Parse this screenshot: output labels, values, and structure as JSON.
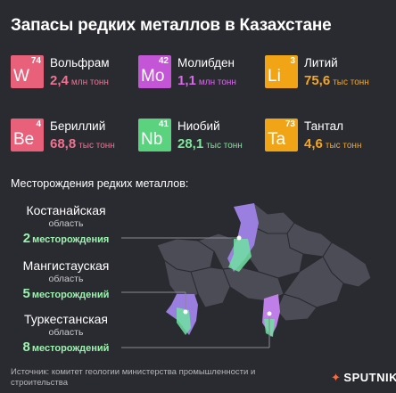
{
  "title": "Запасы редких металлов в Казахстане",
  "metals": [
    {
      "name": "Вольфрам",
      "symbol": "W",
      "number": "74",
      "value": "2,4",
      "unit": "млн тонн",
      "color": "#e8607a",
      "text_color": "#f07290"
    },
    {
      "name": "Молибден",
      "symbol": "Mo",
      "number": "42",
      "value": "1,1",
      "unit": "млн тонн",
      "color": "#c455d6",
      "text_color": "#d66ae8"
    },
    {
      "name": "Литий",
      "symbol": "Li",
      "number": "3",
      "value": "75,6",
      "unit": "тыс тонн",
      "color": "#f2a417",
      "text_color": "#f5a623"
    },
    {
      "name": "Бериллий",
      "symbol": "Be",
      "number": "4",
      "value": "68,8",
      "unit": "тыс тонн",
      "color": "#e8607a",
      "text_color": "#f07290"
    },
    {
      "name": "Ниобий",
      "symbol": "Nb",
      "number": "41",
      "value": "28,1",
      "unit": "тыс тонн",
      "color": "#5bd37e",
      "text_color": "#7ee89a"
    },
    {
      "name": "Тантал",
      "symbol": "Ta",
      "number": "73",
      "value": "4,6",
      "unit": "тыс тонн",
      "color": "#f2a417",
      "text_color": "#f5a623"
    }
  ],
  "section_title": "Месторождения редких металлов:",
  "regions": [
    {
      "name": "Костанайская",
      "sub": "область",
      "count": "2",
      "word": "месторождения"
    },
    {
      "name": "Мангистауская",
      "sub": "область",
      "count": "5",
      "word": "месторождений"
    },
    {
      "name": "Туркестанская",
      "sub": "область",
      "count": "8",
      "word": "месторождений"
    }
  ],
  "source": "Источник: комитет геологии министерства промышленности и строительства",
  "logo": {
    "text": "SPUTNIK",
    "icon": "sputnik-star-icon"
  },
  "colors": {
    "background": "#2a2b30",
    "accent_green": "#9af4ad",
    "map_gray": "#4b4c55"
  }
}
